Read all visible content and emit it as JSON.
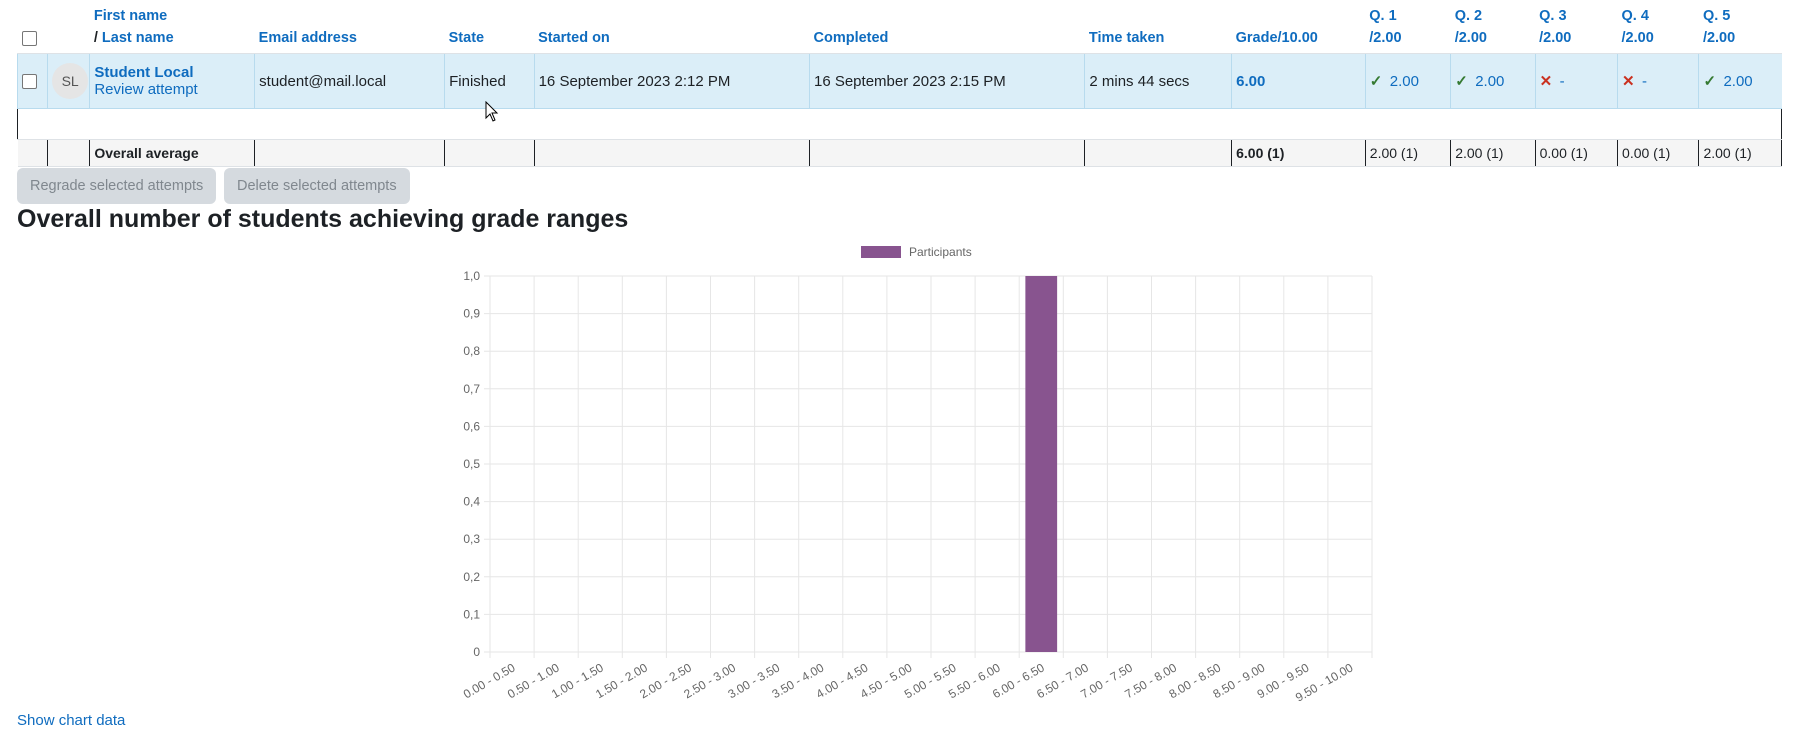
{
  "table": {
    "headers": {
      "first_name": "First name",
      "last_name_prefix": "/ ",
      "last_name": "Last name",
      "email": "Email address",
      "state": "State",
      "started": "Started on",
      "completed": "Completed",
      "time": "Time taken",
      "grade": "Grade/10.00",
      "questions": [
        {
          "label": "Q. 1",
          "max": "/2.00"
        },
        {
          "label": "Q. 2",
          "max": "/2.00"
        },
        {
          "label": "Q. 3",
          "max": "/2.00"
        },
        {
          "label": "Q. 4",
          "max": "/2.00"
        },
        {
          "label": "Q. 5",
          "max": "/2.00"
        }
      ]
    },
    "student": {
      "initials": "SL",
      "name": "Student Local",
      "review": "Review attempt",
      "email": "student@mail.local",
      "state": "Finished",
      "started": "16 September 2023 2:12 PM",
      "completed": "16 September 2023 2:15 PM",
      "time": "2 mins 44 secs",
      "grade": "6.00",
      "questions": [
        {
          "mark": "2.00",
          "icon": "check"
        },
        {
          "mark": "2.00",
          "icon": "check"
        },
        {
          "mark": "-",
          "icon": "cross"
        },
        {
          "mark": "-",
          "icon": "cross"
        },
        {
          "mark": "2.00",
          "icon": "check"
        }
      ]
    },
    "average": {
      "label": "Overall average",
      "grade": "6.00 (1)",
      "questions": [
        "2.00 (1)",
        "2.00 (1)",
        "0.00 (1)",
        "0.00 (1)",
        "2.00 (1)"
      ]
    }
  },
  "buttons": {
    "regrade": "Regrade selected attempts",
    "delete": "Delete selected attempts"
  },
  "section_title": "Overall number of students achieving grade ranges",
  "show_chart_data": "Show chart data",
  "colors": {
    "link": "#0f6cbf",
    "row_highlight": "#dbeef8",
    "bar": "#88548f",
    "check": "#357a32",
    "cross": "#ca3120"
  },
  "chart_data": {
    "type": "bar",
    "categories": [
      "0.00 - 0.50",
      "0.50 - 1.00",
      "1.00 - 1.50",
      "1.50 - 2.00",
      "2.00 - 2.50",
      "2.50 - 3.00",
      "3.00 - 3.50",
      "3.50 - 4.00",
      "4.00 - 4.50",
      "4.50 - 5.00",
      "5.00 - 5.50",
      "5.50 - 6.00",
      "6.00 - 6.50",
      "6.50 - 7.00",
      "7.00 - 7.50",
      "7.50 - 8.00",
      "8.00 - 8.50",
      "8.50 - 9.00",
      "9.00 - 9.50",
      "9.50 - 10.00"
    ],
    "series": [
      {
        "name": "Participants",
        "values": [
          0,
          0,
          0,
          0,
          0,
          0,
          0,
          0,
          0,
          0,
          0,
          0,
          1,
          0,
          0,
          0,
          0,
          0,
          0,
          0
        ]
      }
    ],
    "yticks": [
      "0",
      "0,1",
      "0,2",
      "0,3",
      "0,4",
      "0,5",
      "0,6",
      "0,7",
      "0,8",
      "0,9",
      "1,0"
    ],
    "ylim": [
      0,
      1
    ],
    "grid": true,
    "legend": "top"
  }
}
